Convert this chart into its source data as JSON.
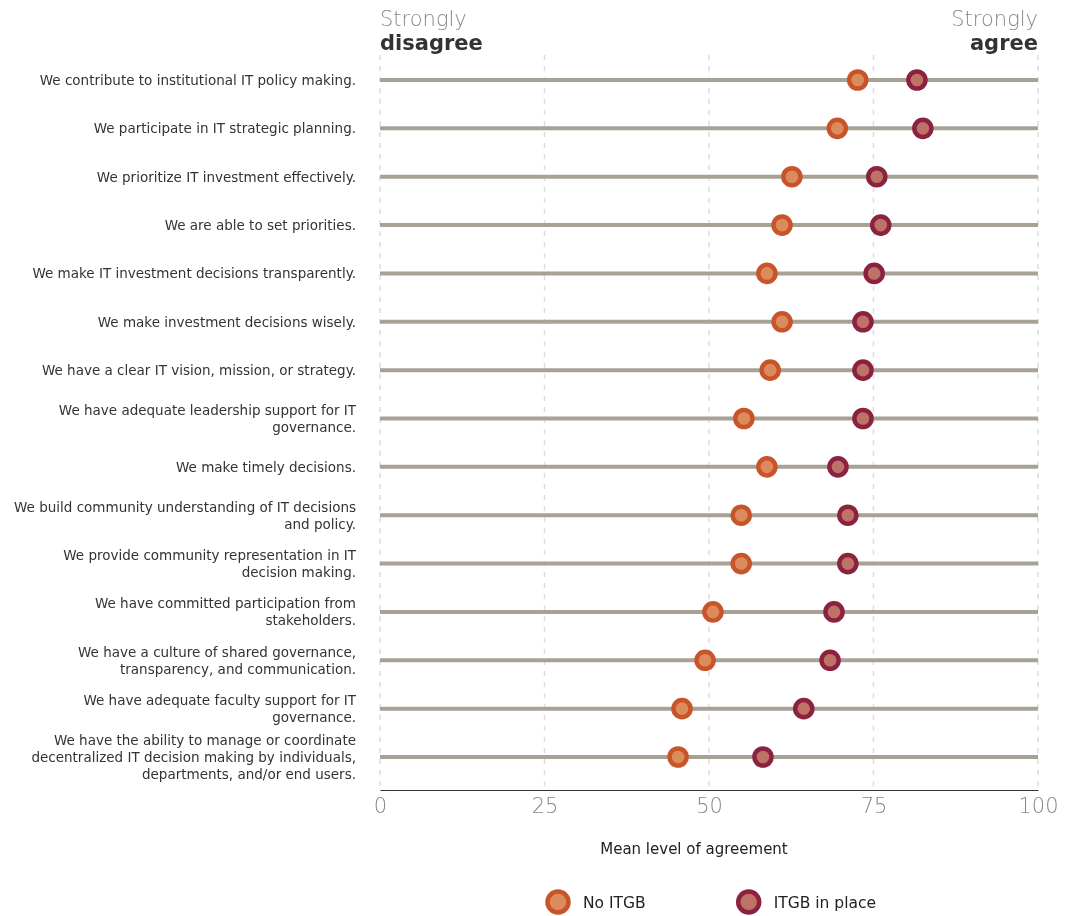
{
  "chart_data": {
    "type": "scatter",
    "orientation": "horizontal",
    "xlabel": "Mean level of agreement",
    "annotations": [
      "Strongly disagree",
      "Strongly agree"
    ],
    "categories": [
      "We contribute to institutional IT policy making.",
      "We participate in IT strategic planning.",
      "We prioritize IT investment effectively.",
      "We are able to set priorities.",
      "We make IT investment decisions transparently.",
      "We make investment decisions wisely.",
      "We have a clear IT vision, mission, or strategy.",
      "We have adequate leadership support for IT governance.",
      "We make timely decisions.",
      "We build community understanding of IT decisions and policy.",
      "We provide community representation in IT decision making.",
      "We have committed participation from stakeholders.",
      "We have a culture of shared governance, transparency, and communication.",
      "We have adequate faculty support for IT governance.",
      "We have the ability to manage or coordinate decentralized IT decision making by individuals, departments, and/or end users."
    ],
    "series": [
      {
        "name": "No ITGB",
        "color": "#c8552a",
        "values": [
          72.6,
          69.5,
          62.6,
          61.1,
          58.8,
          61.1,
          59.3,
          55.3,
          58.8,
          54.9,
          54.9,
          50.6,
          49.4,
          45.9,
          45.3
        ]
      },
      {
        "name": "ITGB in place",
        "color": "#8b2340",
        "values": [
          81.6,
          82.5,
          75.5,
          76.1,
          75.1,
          73.4,
          73.4,
          73.4,
          69.6,
          71.1,
          71.1,
          69.0,
          68.4,
          64.4,
          58.2
        ]
      }
    ],
    "xlim": [
      0,
      100
    ],
    "xticks": [
      0,
      25,
      50,
      75,
      100
    ],
    "grid": true,
    "legend": "bottom",
    "marker": "circle"
  }
}
